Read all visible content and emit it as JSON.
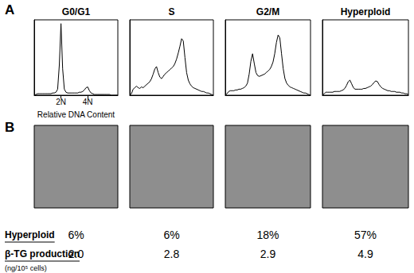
{
  "panel_labels": [
    "A",
    "B"
  ],
  "chart_data": [
    {
      "type": "line",
      "title": "G0/G1",
      "x_label": "Relative DNA Content",
      "color": "#000000",
      "marker": "none",
      "line_style": "solid",
      "grid": false,
      "tick_labels": "x",
      "xlim": [
        0,
        100
      ],
      "ylim": [
        0,
        100
      ],
      "xticks": [
        {
          "value": 32,
          "label": "2N"
        },
        {
          "value": 64,
          "label": "4N"
        }
      ],
      "x": [
        0,
        2,
        4,
        6,
        8,
        10,
        12,
        14,
        16,
        18,
        20,
        22,
        24,
        26,
        28,
        30,
        32,
        34,
        36,
        38,
        40,
        42,
        44,
        46,
        48,
        50,
        52,
        54,
        56,
        58,
        60,
        62,
        64,
        66,
        68,
        70,
        72,
        74,
        76,
        78,
        80,
        82,
        84,
        86,
        88,
        90,
        92,
        94,
        96,
        98,
        100
      ],
      "values": [
        0,
        1,
        2,
        2,
        2,
        2,
        2,
        2,
        2,
        2,
        2,
        3,
        3,
        4,
        8,
        40,
        95,
        35,
        8,
        4,
        3,
        3,
        3,
        3,
        3,
        3,
        3,
        4,
        4,
        5,
        7,
        10,
        11,
        6,
        3,
        2,
        1,
        1,
        1,
        1,
        1,
        1,
        1,
        1,
        1,
        1,
        0,
        0,
        0,
        0,
        0
      ]
    },
    {
      "type": "line",
      "title": "S",
      "color": "#000000",
      "marker": "none",
      "line_style": "solid",
      "grid": false,
      "tick_labels": false,
      "xlim": [
        0,
        100
      ],
      "ylim": [
        0,
        100
      ],
      "x": [
        0,
        2,
        4,
        6,
        8,
        10,
        12,
        14,
        16,
        18,
        20,
        22,
        24,
        26,
        28,
        30,
        32,
        34,
        36,
        38,
        40,
        42,
        44,
        46,
        48,
        50,
        52,
        54,
        56,
        58,
        60,
        62,
        64,
        66,
        68,
        70,
        72,
        74,
        76,
        78,
        80,
        82,
        84,
        86,
        88,
        90,
        92,
        94,
        96,
        98,
        100
      ],
      "values": [
        0,
        2,
        8,
        10,
        12,
        10,
        9,
        11,
        10,
        12,
        14,
        16,
        18,
        22,
        28,
        35,
        38,
        30,
        24,
        22,
        25,
        28,
        30,
        32,
        34,
        36,
        38,
        42,
        48,
        56,
        65,
        75,
        72,
        50,
        30,
        20,
        15,
        12,
        10,
        9,
        8,
        7,
        6,
        5,
        5,
        4,
        3,
        3,
        2,
        1,
        0
      ]
    },
    {
      "type": "line",
      "title": "G2/M",
      "color": "#000000",
      "marker": "none",
      "line_style": "solid",
      "grid": false,
      "tick_labels": false,
      "xlim": [
        0,
        100
      ],
      "ylim": [
        0,
        100
      ],
      "x": [
        0,
        2,
        4,
        6,
        8,
        10,
        12,
        14,
        16,
        18,
        20,
        22,
        24,
        26,
        28,
        30,
        32,
        34,
        36,
        38,
        40,
        42,
        44,
        46,
        48,
        50,
        52,
        54,
        56,
        58,
        60,
        62,
        64,
        66,
        68,
        70,
        72,
        74,
        76,
        78,
        80,
        82,
        84,
        86,
        88,
        90,
        92,
        94,
        96,
        98,
        100
      ],
      "values": [
        0,
        2,
        5,
        6,
        6,
        6,
        7,
        7,
        8,
        8,
        9,
        10,
        12,
        16,
        28,
        45,
        55,
        42,
        30,
        26,
        25,
        26,
        27,
        28,
        30,
        32,
        34,
        38,
        44,
        55,
        70,
        80,
        76,
        55,
        35,
        22,
        16,
        13,
        11,
        10,
        9,
        8,
        7,
        6,
        5,
        4,
        3,
        3,
        2,
        1,
        0
      ]
    },
    {
      "type": "line",
      "title": "Hyperploid",
      "color": "#000000",
      "marker": "none",
      "line_style": "solid",
      "grid": false,
      "tick_labels": false,
      "xlim": [
        0,
        100
      ],
      "ylim": [
        0,
        100
      ],
      "x": [
        0,
        2,
        4,
        6,
        8,
        10,
        12,
        14,
        16,
        18,
        20,
        22,
        24,
        26,
        28,
        30,
        32,
        34,
        36,
        38,
        40,
        42,
        44,
        46,
        48,
        50,
        52,
        54,
        56,
        58,
        60,
        62,
        64,
        66,
        68,
        70,
        72,
        74,
        76,
        78,
        80,
        82,
        84,
        86,
        88,
        90,
        92,
        94,
        96,
        98,
        100
      ],
      "values": [
        0,
        2,
        4,
        4,
        4,
        4,
        4,
        5,
        5,
        5,
        5,
        6,
        7,
        9,
        13,
        18,
        20,
        15,
        10,
        8,
        8,
        8,
        8,
        8,
        9,
        9,
        10,
        11,
        12,
        14,
        17,
        19,
        18,
        14,
        11,
        9,
        8,
        7,
        6,
        6,
        5,
        5,
        5,
        4,
        4,
        4,
        3,
        3,
        2,
        2,
        1
      ]
    }
  ],
  "table": {
    "rows": [
      {
        "label": "Hyperploid",
        "values": [
          6,
          6,
          18,
          57
        ],
        "value_labels": [
          "6%",
          "6%",
          "18%",
          "57%"
        ]
      },
      {
        "label": "β-TG production",
        "sublabel": "(ng/10⁵ cells)",
        "values": [
          2.0,
          2.8,
          2.9,
          4.9
        ],
        "value_labels": [
          "2.0",
          "2.8",
          "2.9",
          "4.9"
        ]
      }
    ]
  }
}
